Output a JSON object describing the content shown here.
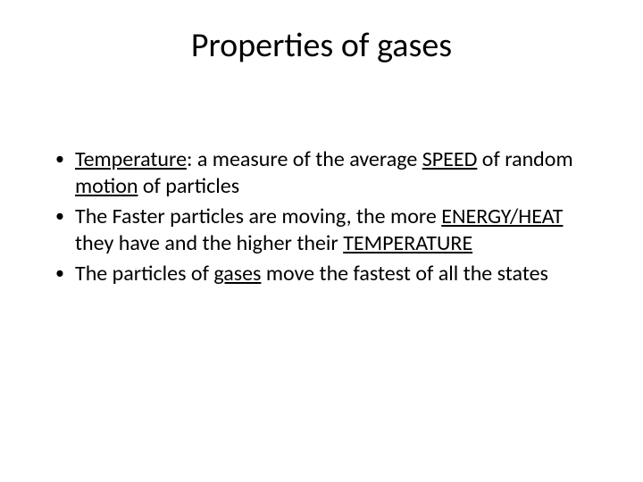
{
  "slide": {
    "title": "Properties of gases",
    "bullets": [
      {
        "segments": [
          {
            "text": "Temperature",
            "underline": true
          },
          {
            "text": ": a measure of the average ",
            "underline": false
          },
          {
            "text": "SPEED",
            "underline": true
          },
          {
            "text": " of random ",
            "underline": false
          },
          {
            "text": "motion",
            "underline": true
          },
          {
            "text": " of particles",
            "underline": false
          }
        ]
      },
      {
        "segments": [
          {
            "text": "The Faster particles are moving, the more ",
            "underline": false
          },
          {
            "text": "ENERGY/HEAT",
            "underline": true
          },
          {
            "text": " they have and the higher their ",
            "underline": false
          },
          {
            "text": "TEMPERATURE",
            "underline": true
          }
        ]
      },
      {
        "segments": [
          {
            "text": "The particles of ",
            "underline": false
          },
          {
            "text": "gases",
            "underline": true
          },
          {
            "text": " move the fastest of all the states",
            "underline": false
          }
        ]
      }
    ]
  },
  "colors": {
    "background": "#ffffff",
    "text": "#000000"
  },
  "typography": {
    "title_fontsize": 38,
    "body_fontsize": 24,
    "font_family": "Calibri"
  }
}
